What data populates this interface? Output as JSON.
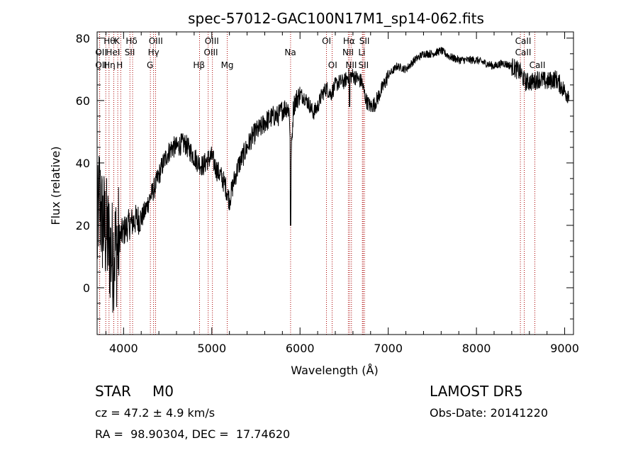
{
  "chart_data": {
    "type": "line",
    "title": "spec-57012-GAC100N17M1_sp14-062.fits",
    "xlabel": "Wavelength (Å)",
    "ylabel": "Flux (relative)",
    "xlim": [
      3700,
      9100
    ],
    "ylim": [
      -15,
      82
    ],
    "xticks": [
      4000,
      5000,
      6000,
      7000,
      8000,
      9000
    ],
    "yticks": [
      0,
      20,
      40,
      60,
      80
    ],
    "grid": false,
    "line_color": "#000000",
    "marker_color": "#aa0000",
    "anchors": [
      [
        3700,
        15
      ],
      [
        3725,
        30
      ],
      [
        3750,
        22
      ],
      [
        3775,
        20
      ],
      [
        3800,
        18
      ],
      [
        3825,
        15
      ],
      [
        3850,
        12
      ],
      [
        3875,
        10
      ],
      [
        3900,
        13
      ],
      [
        3925,
        12
      ],
      [
        3950,
        16
      ],
      [
        3975,
        17
      ],
      [
        4000,
        18
      ],
      [
        4050,
        20
      ],
      [
        4100,
        21
      ],
      [
        4150,
        22
      ],
      [
        4200,
        22
      ],
      [
        4250,
        25
      ],
      [
        4300,
        29
      ],
      [
        4350,
        32
      ],
      [
        4400,
        36
      ],
      [
        4450,
        40
      ],
      [
        4500,
        43
      ],
      [
        4550,
        45
      ],
      [
        4600,
        45
      ],
      [
        4650,
        46
      ],
      [
        4700,
        46
      ],
      [
        4750,
        44
      ],
      [
        4800,
        42
      ],
      [
        4850,
        40
      ],
      [
        4900,
        39
      ],
      [
        4950,
        41
      ],
      [
        5000,
        42
      ],
      [
        5050,
        38
      ],
      [
        5100,
        36
      ],
      [
        5150,
        33
      ],
      [
        5200,
        28
      ],
      [
        5250,
        34
      ],
      [
        5300,
        39
      ],
      [
        5350,
        42
      ],
      [
        5400,
        45
      ],
      [
        5450,
        48
      ],
      [
        5500,
        50
      ],
      [
        5550,
        51
      ],
      [
        5600,
        53
      ],
      [
        5650,
        54
      ],
      [
        5700,
        55
      ],
      [
        5750,
        55
      ],
      [
        5800,
        57
      ],
      [
        5850,
        58
      ],
      [
        5875,
        57
      ],
      [
        5900,
        42
      ],
      [
        5925,
        58
      ],
      [
        5950,
        60
      ],
      [
        6000,
        62
      ],
      [
        6050,
        61
      ],
      [
        6100,
        59
      ],
      [
        6150,
        56
      ],
      [
        6200,
        58
      ],
      [
        6250,
        62
      ],
      [
        6300,
        64
      ],
      [
        6350,
        62
      ],
      [
        6400,
        65
      ],
      [
        6450,
        66
      ],
      [
        6500,
        66
      ],
      [
        6550,
        68
      ],
      [
        6600,
        68
      ],
      [
        6650,
        67
      ],
      [
        6700,
        66
      ],
      [
        6750,
        60
      ],
      [
        6800,
        58
      ],
      [
        6850,
        59
      ],
      [
        6900,
        62
      ],
      [
        6950,
        65
      ],
      [
        7000,
        68
      ],
      [
        7100,
        71
      ],
      [
        7200,
        70
      ],
      [
        7300,
        73
      ],
      [
        7400,
        75
      ],
      [
        7500,
        75
      ],
      [
        7600,
        76
      ],
      [
        7700,
        74
      ],
      [
        7800,
        73
      ],
      [
        7900,
        73
      ],
      [
        8000,
        73
      ],
      [
        8100,
        72
      ],
      [
        8200,
        71
      ],
      [
        8300,
        72
      ],
      [
        8400,
        71
      ],
      [
        8500,
        69
      ],
      [
        8550,
        66
      ],
      [
        8650,
        66
      ],
      [
        8700,
        67
      ],
      [
        8800,
        66
      ],
      [
        8900,
        67
      ],
      [
        8950,
        65
      ],
      [
        9000,
        63
      ],
      [
        9030,
        62
      ],
      [
        9050,
        63
      ]
    ],
    "lines": [
      {
        "name": "Hθ",
        "x": 3798
      },
      {
        "name": "OII",
        "x": 3727
      },
      {
        "name": "OII",
        "x": 3729
      },
      {
        "name": "Hη",
        "x": 3835
      },
      {
        "name": "HeI",
        "x": 3889
      },
      {
        "name": "K",
        "x": 3934
      },
      {
        "name": "H",
        "x": 3968
      },
      {
        "name": "SII",
        "x": 4072
      },
      {
        "name": "Hδ",
        "x": 4102
      },
      {
        "name": "Hγ",
        "x": 4340
      },
      {
        "name": "G",
        "x": 4304
      },
      {
        "name": "OIII",
        "x": 4363
      },
      {
        "name": "Hβ",
        "x": 4861
      },
      {
        "name": "OIII",
        "x": 4959
      },
      {
        "name": "OIII",
        "x": 5007
      },
      {
        "name": "Mg",
        "x": 5175
      },
      {
        "name": "Na",
        "x": 5893
      },
      {
        "name": "OI",
        "x": 6300
      },
      {
        "name": "OI",
        "x": 6364
      },
      {
        "name": "NII",
        "x": 6548
      },
      {
        "name": "Hα",
        "x": 6563
      },
      {
        "name": "NII",
        "x": 6583
      },
      {
        "name": "Li",
        "x": 6707
      },
      {
        "name": "SII",
        "x": 6716
      },
      {
        "name": "SII",
        "x": 6731
      },
      {
        "name": "CaII",
        "x": 8498
      },
      {
        "name": "CaII",
        "x": 8542
      },
      {
        "name": "CaII",
        "x": 8662
      }
    ],
    "labels": [
      {
        "text": "Hθ",
        "x": 3840,
        "row": 0
      },
      {
        "text": "K",
        "x": 3925,
        "row": 0
      },
      {
        "text": "Hδ",
        "x": 4090,
        "row": 0
      },
      {
        "text": "OIII",
        "x": 4365,
        "row": 0
      },
      {
        "text": "OIII",
        "x": 5000,
        "row": 0
      },
      {
        "text": "OI",
        "x": 6300,
        "row": 0
      },
      {
        "text": "Hα",
        "x": 6555,
        "row": 0
      },
      {
        "text": "SII",
        "x": 6730,
        "row": 0
      },
      {
        "text": "CaII",
        "x": 8530,
        "row": 0
      },
      {
        "text": "OII",
        "x": 3745,
        "row": 1
      },
      {
        "text": "HeI",
        "x": 3880,
        "row": 1
      },
      {
        "text": "SII",
        "x": 4070,
        "row": 1
      },
      {
        "text": "Hγ",
        "x": 4340,
        "row": 1
      },
      {
        "text": "OIII",
        "x": 4990,
        "row": 1
      },
      {
        "text": "Na",
        "x": 5890,
        "row": 1
      },
      {
        "text": "NII",
        "x": 6545,
        "row": 1
      },
      {
        "text": "Li",
        "x": 6700,
        "row": 1
      },
      {
        "text": "CaII",
        "x": 8530,
        "row": 1
      },
      {
        "text": "OII",
        "x": 3745,
        "row": 2
      },
      {
        "text": "Hη",
        "x": 3840,
        "row": 2
      },
      {
        "text": "H",
        "x": 3955,
        "row": 2
      },
      {
        "text": "G",
        "x": 4300,
        "row": 2
      },
      {
        "text": "Hβ",
        "x": 4855,
        "row": 2
      },
      {
        "text": "Mg",
        "x": 5175,
        "row": 2
      },
      {
        "text": "OI",
        "x": 6370,
        "row": 2
      },
      {
        "text": "NII",
        "x": 6580,
        "row": 2
      },
      {
        "text": "SII",
        "x": 6720,
        "row": 2
      },
      {
        "text": "CaII",
        "x": 8690,
        "row": 2
      }
    ]
  },
  "info": {
    "object_class": "STAR",
    "subclass": "M0",
    "survey": "LAMOST DR5",
    "cz": "cz = 47.2 ± 4.9 km/s",
    "obs_date": "Obs-Date: 20141220",
    "coords": "RA =  98.90304, DEC =  17.74620"
  }
}
